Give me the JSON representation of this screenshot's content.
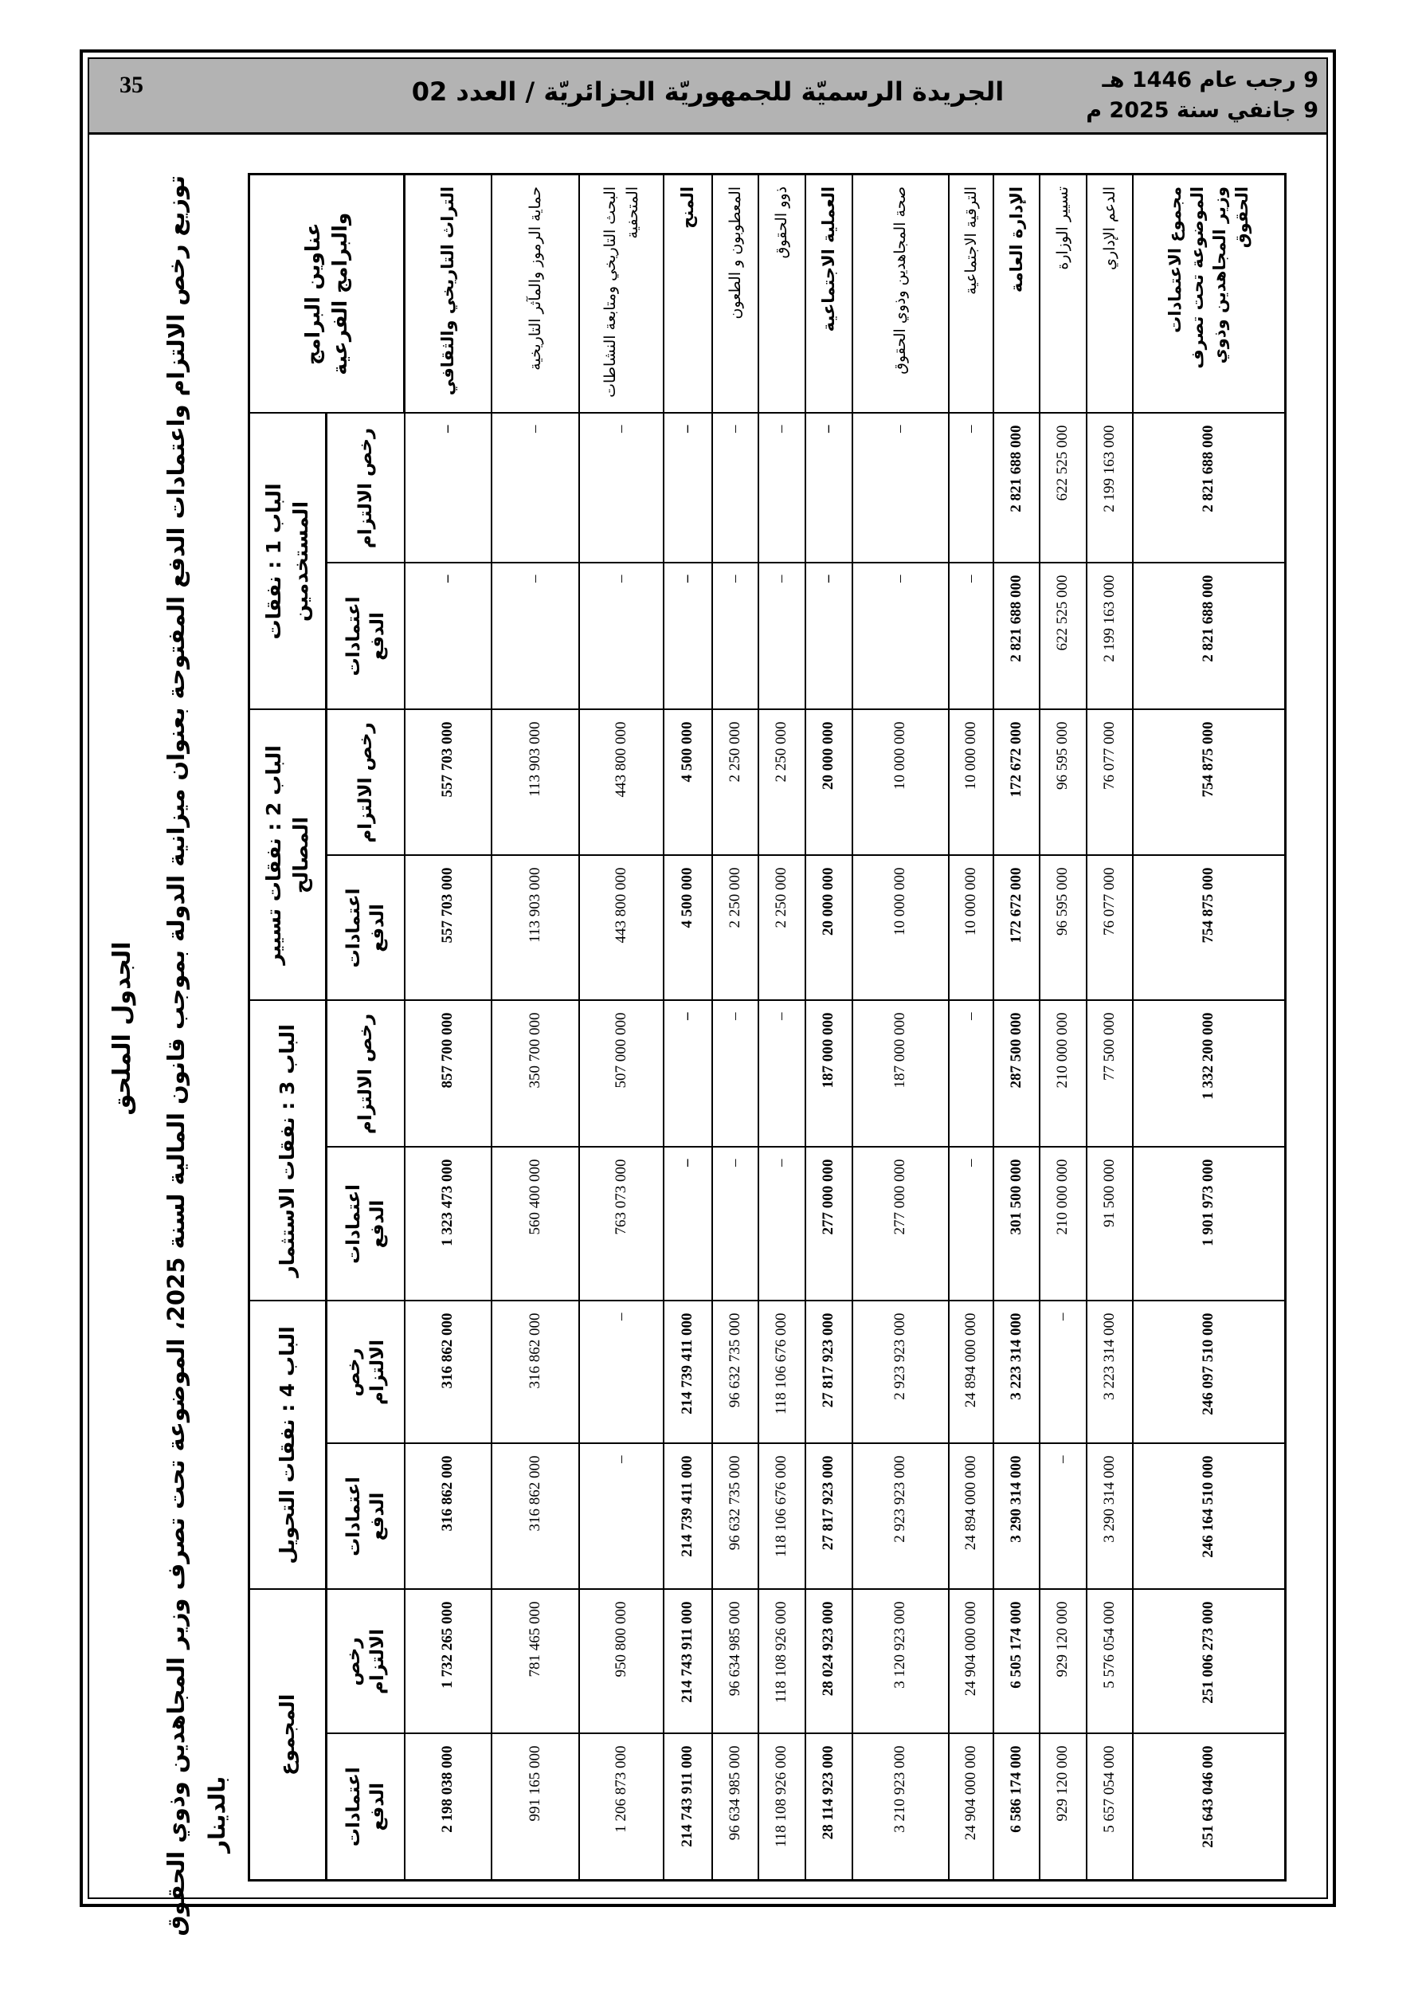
{
  "header": {
    "page_number": "35",
    "title": "الجريدة الرسميّة للجمهوريّة الجزائريّة / العدد 02",
    "date_hijri": "9 رجب عام 1446 هـ",
    "date_gregorian": "9 جانفي سنة 2025 م",
    "background_color": "#b3b3b3"
  },
  "annex": {
    "heading": "الجدول الملحق",
    "title": "توزيع رخص الالتزام واعتمادات الدفع المفتوحة بعنوان ميزانية الدولة بموجب قانون المالية لسنة 2025، الموضوعة تحت تصرف وزير المجاهدين وذوي الحقوق",
    "unit": "بالدينار"
  },
  "table": {
    "label_header": "عناوين البرامج والبرامج الفرعية",
    "groups": [
      "الباب 1 : نفقات المستخدمين",
      "الباب 2 : نفقات تسيير المصالح",
      "الباب 3 : نفقات الاستثمار",
      "الباب 4 : نفقات التحويل",
      "المجموع"
    ],
    "sub_headers": [
      "رخص الالتزام",
      "اعتمادات الدفع"
    ],
    "rows": [
      {
        "label": "التراث التاريخي والثقافي",
        "bold": true,
        "values": [
          "–",
          "–",
          "557 703 000",
          "557 703 000",
          "857 700 000",
          "1 323 473 000",
          "316 862 000",
          "316 862 000",
          "1 732 265 000",
          "2 198 038 000"
        ]
      },
      {
        "label": "حماية الرموز والمآثر التاريخية",
        "bold": false,
        "values": [
          "–",
          "–",
          "113 903 000",
          "113 903 000",
          "350 700 000",
          "560 400 000",
          "316 862 000",
          "316 862 000",
          "781 465 000",
          "991 165 000"
        ]
      },
      {
        "label": "البحث التاريخي ومتابعة النشاطات المتحفية",
        "bold": false,
        "values": [
          "–",
          "–",
          "443 800 000",
          "443 800 000",
          "507 000 000",
          "763 073 000",
          "–",
          "–",
          "950 800 000",
          "1 206 873 000"
        ]
      },
      {
        "label": "المنح",
        "bold": true,
        "values": [
          "–",
          "–",
          "4 500 000",
          "4 500 000",
          "–",
          "–",
          "214 739 411 000",
          "214 739 411 000",
          "214 743 911 000",
          "214 743 911 000"
        ]
      },
      {
        "label": "المعطوبون و الطعون",
        "bold": false,
        "values": [
          "–",
          "–",
          "2 250 000",
          "2 250 000",
          "–",
          "–",
          "96 632 735 000",
          "96 632 735 000",
          "96 634 985 000",
          "96 634 985 000"
        ]
      },
      {
        "label": "ذوو الحقوق",
        "bold": false,
        "values": [
          "–",
          "–",
          "2 250 000",
          "2 250 000",
          "–",
          "–",
          "118 106 676 000",
          "118 106 676 000",
          "118 108 926 000",
          "118 108 926 000"
        ]
      },
      {
        "label": "العملية الاجتماعية",
        "bold": true,
        "values": [
          "–",
          "–",
          "20 000 000",
          "20 000 000",
          "187 000 000",
          "277 000 000",
          "27 817 923 000",
          "27 817 923 000",
          "28 024 923 000",
          "28 114 923 000"
        ]
      },
      {
        "label": "صحة المجاهدين وذوي الحقوق",
        "bold": false,
        "values": [
          "–",
          "–",
          "10 000 000",
          "10 000 000",
          "187 000 000",
          "277 000 000",
          "2 923 923 000",
          "2 923 923 000",
          "3 120 923 000",
          "3 210 923 000"
        ]
      },
      {
        "label": "الترقية الاجتماعية",
        "bold": false,
        "values": [
          "–",
          "–",
          "10 000 000",
          "10 000 000",
          "–",
          "–",
          "24 894 000 000",
          "24 894 000 000",
          "24 904 000 000",
          "24 904 000 000"
        ]
      },
      {
        "label": "الإدارة العامة",
        "bold": true,
        "values": [
          "2 821 688 000",
          "2 821 688 000",
          "172 672 000",
          "172 672 000",
          "287 500 000",
          "301 500 000",
          "3 223 314 000",
          "3 290 314 000",
          "6 505 174 000",
          "6 586 174 000"
        ]
      },
      {
        "label": "تسيير الوزارة",
        "bold": false,
        "values": [
          "622 525 000",
          "622 525 000",
          "96 595 000",
          "96 595 000",
          "210 000 000",
          "210 000 000",
          "–",
          "–",
          "929 120 000",
          "929 120 000"
        ]
      },
      {
        "label": "الدعم الإداري",
        "bold": false,
        "values": [
          "2 199 163 000",
          "2 199 163 000",
          "76 077 000",
          "76 077 000",
          "77 500 000",
          "91 500 000",
          "3 223 314 000",
          "3 290 314 000",
          "5 576 054 000",
          "5 657 054 000"
        ]
      },
      {
        "label": "مجموع الاعتمادات الموضوعة تحت تصرف وزير المجاهدين وذوي الحقوق",
        "bold": true,
        "values": [
          "2 821 688 000",
          "2 821 688 000",
          "754 875 000",
          "754 875 000",
          "1 332 200 000",
          "1 901 973 000",
          "246 097 510 000",
          "246 164 510 000",
          "251 006 273 000",
          "251 643 046 000"
        ]
      }
    ]
  }
}
